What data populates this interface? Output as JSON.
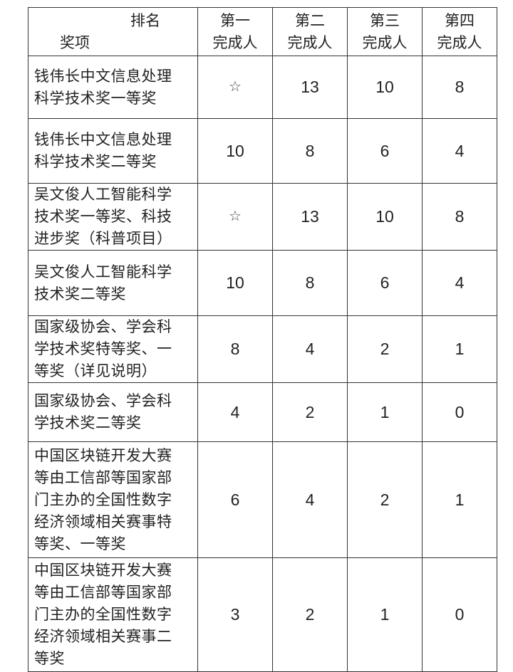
{
  "header": {
    "corner_top": "排名",
    "corner_bottom": "奖项",
    "columns": [
      {
        "line1": "第一",
        "line2": "完成人"
      },
      {
        "line1": "第二",
        "line2": "完成人"
      },
      {
        "line1": "第三",
        "line2": "完成人"
      },
      {
        "line1": "第四",
        "line2": "完成人"
      }
    ]
  },
  "rows": [
    {
      "award": [
        "钱伟长中文信息处理",
        "科学技术奖一等奖"
      ],
      "values": [
        "☆",
        "13",
        "10",
        "8"
      ]
    },
    {
      "award": [
        "钱伟长中文信息处理",
        "科学技术奖二等奖"
      ],
      "values": [
        "10",
        "8",
        "6",
        "4"
      ]
    },
    {
      "award": [
        "吴文俊人工智能科学",
        "技术奖一等奖、科技",
        "进步奖（科普项目）"
      ],
      "values": [
        "☆",
        "13",
        "10",
        "8"
      ]
    },
    {
      "award": [
        "吴文俊人工智能科学",
        "技术奖二等奖"
      ],
      "values": [
        "10",
        "8",
        "6",
        "4"
      ]
    },
    {
      "award": [
        "国家级协会、学会科",
        "学技术奖特等奖、一",
        "等奖（详见说明）"
      ],
      "values": [
        "8",
        "4",
        "2",
        "1"
      ]
    },
    {
      "award": [
        "国家级协会、学会科",
        "学技术奖二等奖"
      ],
      "values": [
        "4",
        "2",
        "1",
        "0"
      ]
    },
    {
      "award": [
        "中国区块链开发大赛",
        "等由工信部等国家部",
        "门主办的全国性数字",
        "经济领域相关赛事特",
        "等奖、一等奖"
      ],
      "values": [
        "6",
        "4",
        "2",
        "1"
      ]
    },
    {
      "award": [
        "中国区块链开发大赛",
        "等由工信部等国家部",
        "门主办的全国性数字",
        "经济领域相关赛事二",
        "等奖"
      ],
      "values": [
        "3",
        "2",
        "1",
        "0"
      ]
    }
  ]
}
